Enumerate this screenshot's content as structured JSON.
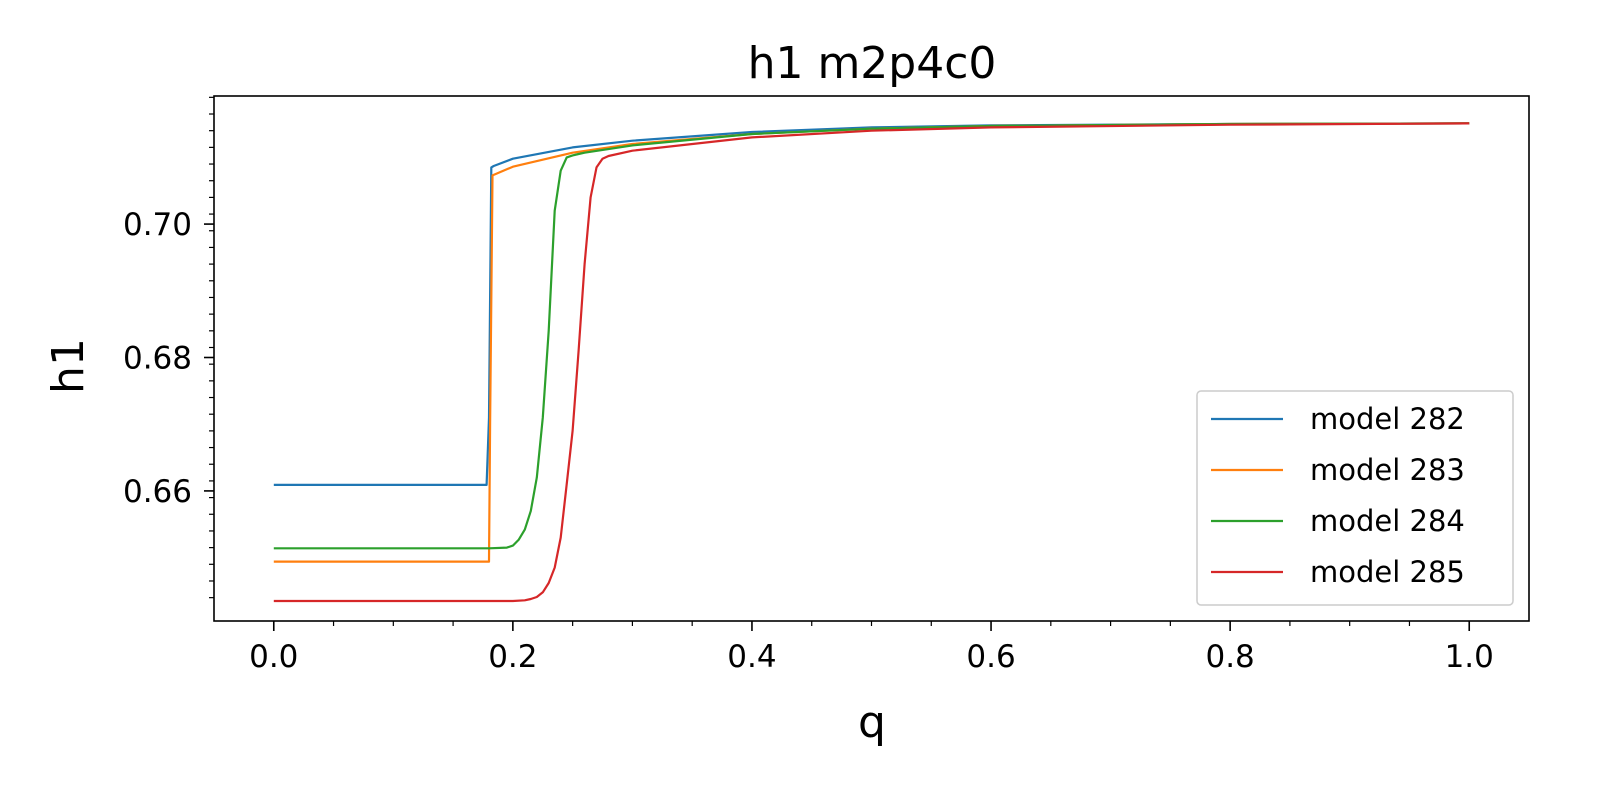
{
  "chart_data": {
    "type": "line",
    "title": "h1 m2p4c0",
    "xlabel": "q",
    "ylabel": "h1",
    "xlim": [
      -0.05,
      1.05
    ],
    "ylim": [
      0.6405,
      0.7192
    ],
    "xticks": [
      0.0,
      0.2,
      0.4,
      0.6,
      0.8,
      1.0
    ],
    "xtick_labels": [
      "0.0",
      "0.2",
      "0.4",
      "0.6",
      "0.8",
      "1.0"
    ],
    "yticks": [
      0.66,
      0.68,
      0.7
    ],
    "ytick_labels": [
      "0.66",
      "0.68",
      "0.70"
    ],
    "grid": false,
    "legend_position": "lower-right",
    "series": [
      {
        "name": "model 282",
        "color": "#1f77b4",
        "x": [
          0.0,
          0.17,
          0.178,
          0.18,
          0.182,
          0.184,
          0.2,
          0.25,
          0.3,
          0.4,
          0.5,
          0.6,
          0.8,
          1.0
        ],
        "y": [
          0.6609,
          0.6609,
          0.6609,
          0.671,
          0.7085,
          0.7087,
          0.7098,
          0.7115,
          0.7125,
          0.7138,
          0.7145,
          0.7148,
          0.715,
          0.7151
        ]
      },
      {
        "name": "model 283",
        "color": "#ff7f0e",
        "x": [
          0.0,
          0.17,
          0.18,
          0.181,
          0.183,
          0.2,
          0.25,
          0.3,
          0.4,
          0.5,
          0.6,
          0.8,
          1.0
        ],
        "y": [
          0.6494,
          0.6494,
          0.6494,
          0.67,
          0.7073,
          0.7086,
          0.7107,
          0.712,
          0.7135,
          0.7143,
          0.7147,
          0.715,
          0.7151
        ]
      },
      {
        "name": "model 284",
        "color": "#2ca02c",
        "x": [
          0.0,
          0.18,
          0.195,
          0.2,
          0.205,
          0.21,
          0.215,
          0.22,
          0.225,
          0.23,
          0.235,
          0.24,
          0.245,
          0.25,
          0.255,
          0.26,
          0.3,
          0.4,
          0.5,
          0.6,
          0.8,
          1.0
        ],
        "y": [
          0.6514,
          0.6514,
          0.6515,
          0.6518,
          0.6527,
          0.6542,
          0.657,
          0.662,
          0.671,
          0.684,
          0.702,
          0.708,
          0.71,
          0.7103,
          0.7105,
          0.7107,
          0.7118,
          0.7135,
          0.7143,
          0.7147,
          0.715,
          0.7151
        ]
      },
      {
        "name": "model 285",
        "color": "#d62728",
        "x": [
          0.0,
          0.2,
          0.21,
          0.215,
          0.22,
          0.225,
          0.23,
          0.235,
          0.24,
          0.245,
          0.25,
          0.255,
          0.26,
          0.265,
          0.27,
          0.275,
          0.28,
          0.3,
          0.4,
          0.5,
          0.6,
          0.8,
          1.0
        ],
        "y": [
          0.6435,
          0.6435,
          0.6436,
          0.6438,
          0.6441,
          0.6448,
          0.6462,
          0.6485,
          0.653,
          0.661,
          0.669,
          0.681,
          0.694,
          0.704,
          0.7085,
          0.7098,
          0.7102,
          0.711,
          0.713,
          0.714,
          0.7145,
          0.7149,
          0.7151
        ]
      }
    ]
  }
}
